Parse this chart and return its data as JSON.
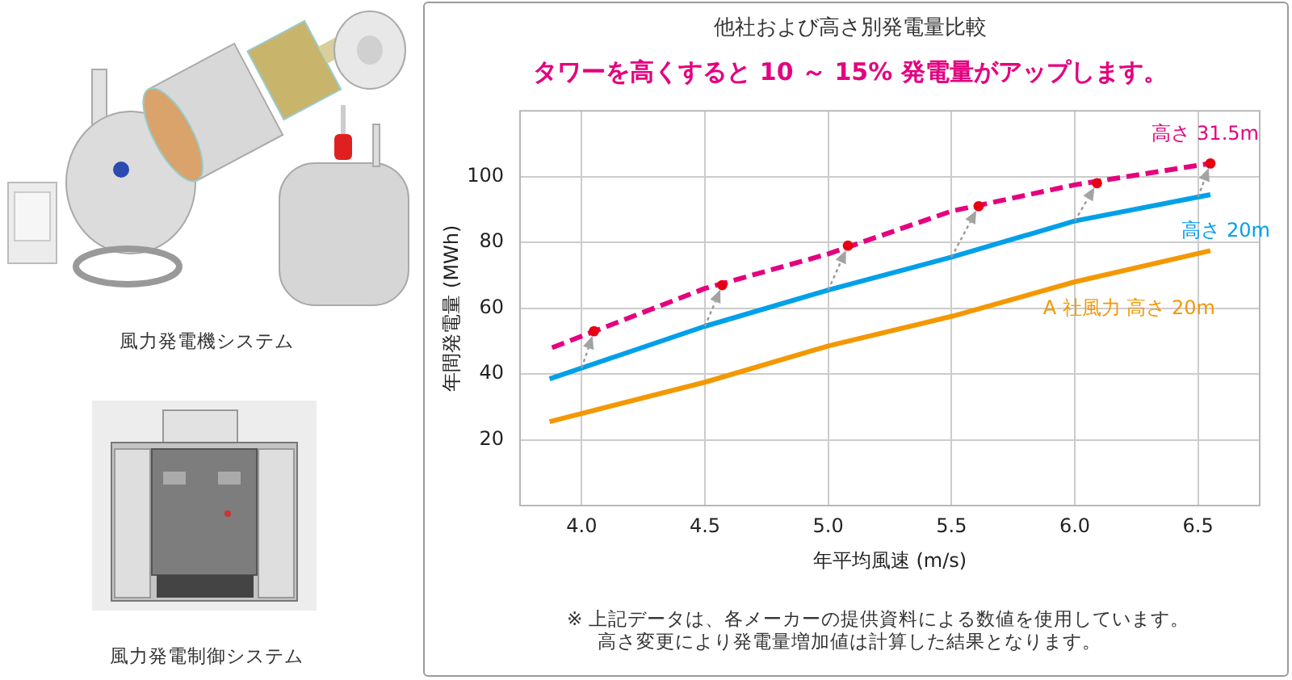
{
  "chart_data": {
    "type": "line",
    "title": "他社および高さ別発電量比較",
    "subtitle": "タワーを高くすると 10 ～ 15% 発電量がアップします。",
    "xlabel": "年平均風速 (m/s)",
    "ylabel": "年間発電量 (MWh)",
    "xlim": [
      3.75,
      6.75
    ],
    "xticks": [
      {
        "value": 4,
        "label": "4.0"
      },
      4.5,
      {
        "value": 5,
        "label": "5.0"
      },
      5.5,
      {
        "value": 6,
        "label": "6.0"
      },
      6.5
    ],
    "ylim": [
      0,
      120
    ],
    "yticks": [
      20,
      40,
      60,
      80,
      100
    ],
    "grid": true,
    "series": [
      {
        "name": "高さ 31.5m",
        "color": "#e4007f",
        "x": [
          3.88,
          4.5,
          5.0,
          5.5,
          6.0,
          6.55
        ],
        "values": [
          48,
          66,
          76.5,
          89.5,
          97.5,
          104
        ],
        "line_style": "dashed"
      },
      {
        "name": "高さ 20m",
        "color": "#00a0e9",
        "x": [
          3.87,
          4.5,
          5.0,
          5.5,
          6.0,
          6.55
        ],
        "values": [
          38.5,
          54.5,
          65.5,
          75.5,
          86.5,
          94.5
        ]
      },
      {
        "name": "A 社風力 高さ 20m",
        "color": "#f39800",
        "x": [
          3.87,
          4.5,
          5.0,
          5.5,
          6.0,
          6.55
        ],
        "values": [
          25.5,
          37.5,
          48.5,
          57.5,
          68,
          77.5
        ]
      },
      {
        "type": "scatter",
        "color": "#e60012",
        "marker": "circle",
        "x": [
          4.05,
          4.57,
          5.08,
          5.61,
          6.09,
          6.55
        ],
        "values": [
          53,
          67,
          79,
          91,
          98,
          104
        ]
      }
    ],
    "annotations": [
      "風力発電機システム",
      "風力発電制御システム",
      "※ 上記データは、各メーカーの提供資料による数値を使用しています。",
      "高さ変更により発電量増加値は計算した結果となります。"
    ]
  }
}
